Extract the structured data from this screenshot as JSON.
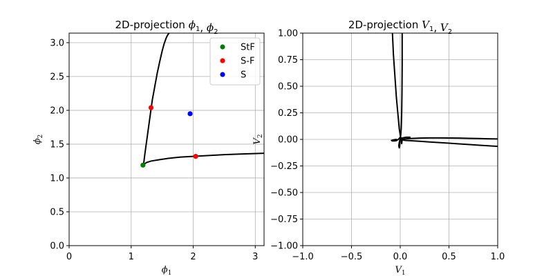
{
  "chart_data": [
    {
      "type": "line",
      "title": "2D-projection ϕ₁, ϕ₂",
      "xlabel": "ϕ₁",
      "ylabel": "ϕ₂",
      "xlim": [
        0,
        3.14159
      ],
      "ylim": [
        0,
        3.14159
      ],
      "xticks": [
        0,
        1,
        2,
        3
      ],
      "xtick_labels": [
        "0",
        "1",
        "2",
        "3"
      ],
      "yticks": [
        0,
        0.5,
        1.0,
        1.5,
        2.0,
        2.5,
        3.0
      ],
      "ytick_labels": [
        "0.0",
        "0.5",
        "1.0",
        "1.5",
        "2.0",
        "2.5",
        "3.0"
      ],
      "grid": true,
      "legend_position": "top-right",
      "curves": [
        {
          "x": [
            1.2,
            1.22,
            1.25,
            1.28,
            1.31,
            1.34,
            1.38,
            1.42,
            1.46,
            1.5,
            1.53,
            1.56,
            1.58,
            1.6,
            1.61
          ],
          "y": [
            1.2,
            1.35,
            1.55,
            1.75,
            1.95,
            2.15,
            2.35,
            2.55,
            2.72,
            2.88,
            2.98,
            3.06,
            3.1,
            3.13,
            3.14
          ]
        },
        {
          "x": [
            1.2,
            1.25,
            1.32,
            1.45,
            1.6,
            1.8,
            2.0,
            2.2,
            2.5,
            2.8,
            3.14
          ],
          "y": [
            1.2,
            1.23,
            1.25,
            1.27,
            1.29,
            1.31,
            1.32,
            1.33,
            1.345,
            1.355,
            1.365
          ]
        }
      ],
      "series": [
        {
          "name": "StF",
          "color": "#008000",
          "points": [
            [
              1.19,
              1.19
            ]
          ]
        },
        {
          "name": "S-F",
          "color": "#ff0000",
          "points": [
            [
              1.32,
              2.04
            ],
            [
              2.04,
              1.32
            ]
          ]
        },
        {
          "name": "S",
          "color": "#0000ff",
          "points": [
            [
              1.95,
              1.95
            ]
          ]
        }
      ]
    },
    {
      "type": "line",
      "title": "2D-projection V₁, V₂",
      "xlabel": "V₁",
      "ylabel": "V₂",
      "xlim": [
        -1.0,
        1.0
      ],
      "ylim": [
        -1.0,
        1.0
      ],
      "xticks": [
        -1.0,
        -0.5,
        0.0,
        0.5,
        1.0
      ],
      "xtick_labels": [
        "−1.0",
        "−0.5",
        "0.0",
        "0.5",
        "1.0"
      ],
      "yticks": [
        -1.0,
        -0.75,
        -0.5,
        -0.25,
        0.0,
        0.25,
        0.5,
        0.75,
        1.0
      ],
      "ytick_labels": [
        "−1.00",
        "−0.75",
        "−0.50",
        "−0.25",
        "0.00",
        "0.25",
        "0.50",
        "0.75",
        "1.00"
      ],
      "grid": true,
      "curves": [
        {
          "x": [
            -0.08,
            -0.07,
            -0.055,
            -0.04,
            -0.025,
            -0.01,
            0.0,
            0.005,
            0.01,
            0.015,
            0.02,
            0.05,
            0.1,
            0.2,
            0.3,
            0.4,
            0.5,
            0.6,
            0.7,
            0.8,
            0.9,
            1.0
          ],
          "y": [
            1.0,
            0.8,
            0.6,
            0.4,
            0.25,
            0.1,
            0.04,
            0.02,
            0.0,
            -0.04,
            0.0,
            0.005,
            0.008,
            0.012,
            0.014,
            0.014,
            0.013,
            0.012,
            0.01,
            0.008,
            0.006,
            0.004
          ]
        },
        {
          "x": [
            0.02,
            0.02,
            0.018,
            0.015,
            0.01,
            0.005,
            0.0,
            -0.005,
            -0.01
          ],
          "y": [
            1.0,
            0.7,
            0.45,
            0.25,
            0.1,
            0.04,
            0.015,
            -0.02,
            -0.07
          ]
        },
        {
          "x": [
            0.0,
            -0.002,
            -0.005,
            -0.01,
            -0.015,
            -0.01,
            -0.005,
            0.0,
            0.01,
            0.03,
            0.06,
            0.1
          ],
          "y": [
            0.02,
            -0.02,
            -0.06,
            -0.08,
            -0.06,
            -0.03,
            -0.01,
            0.0,
            0.01,
            0.015,
            0.02,
            0.02
          ]
        },
        {
          "x": [
            -0.04,
            -0.07,
            -0.09,
            -0.08,
            -0.06,
            -0.04,
            -0.02,
            0.0
          ],
          "y": [
            0.0,
            -0.005,
            -0.01,
            -0.015,
            -0.015,
            -0.012,
            0.0,
            0.02
          ]
        },
        {
          "x": [
            0.0,
            0.05,
            0.1,
            0.2,
            0.3,
            0.4,
            0.5,
            0.6,
            0.7,
            0.8,
            0.9,
            1.0
          ],
          "y": [
            0.0,
            -0.01,
            -0.012,
            -0.018,
            -0.024,
            -0.03,
            -0.036,
            -0.042,
            -0.048,
            -0.054,
            -0.06,
            -0.066
          ]
        }
      ]
    }
  ]
}
